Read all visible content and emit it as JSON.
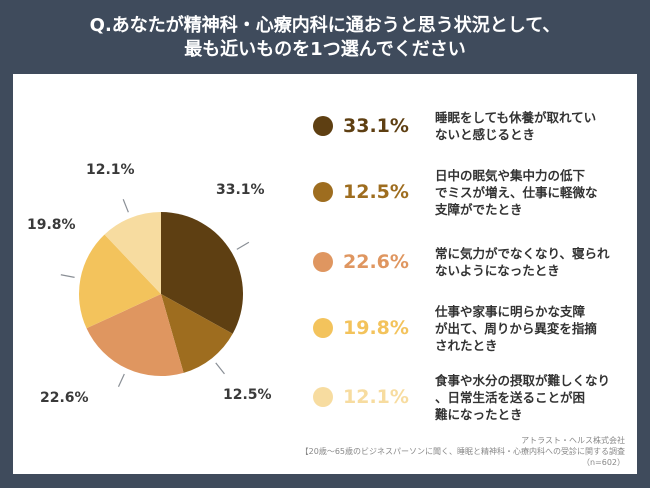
{
  "title": {
    "line1": "Q.あなたが精神科・心療内科に通おうと思う状況として、",
    "line2": "最も近いものを1つ選んでください"
  },
  "chart_data": {
    "type": "pie",
    "title": "Q.あなたが精神科・心療内科に通おうと思う状況として、最も近いものを1つ選んでください",
    "unit": "%",
    "slices": [
      {
        "label": "睡眠をしても休養が取れていないと感じるとき",
        "value": 33.1,
        "display": "33.1%",
        "color": "#5e3f12"
      },
      {
        "label": "日中の眠気や集中力の低下でミスが増え、仕事に軽微な支障がでたとき",
        "value": 12.5,
        "display": "12.5%",
        "color": "#9e6d1f"
      },
      {
        "label": "常に気力がでなくなり、寝られないようになったとき",
        "value": 22.6,
        "display": "22.6%",
        "color": "#df9660"
      },
      {
        "label": "仕事や家事に明らかな支障が出て、周りから異変を指摘されたとき",
        "value": 19.8,
        "display": "19.8%",
        "color": "#f3c35c"
      },
      {
        "label": "食事や水分の摂取が難しくなり、日常生活を送ることが困難になったとき",
        "value": 12.1,
        "display": "12.1%",
        "color": "#f7dca0"
      }
    ]
  },
  "legend": [
    {
      "pct": "33.1%",
      "line1": "睡眠をしても休養が取れてい",
      "line2": "ないと感じるとき",
      "line3": ""
    },
    {
      "pct": "12.5%",
      "line1": "日中の眠気や集中力の低下",
      "line2": "でミスが増え、仕事に軽微な",
      "line3": "支障がでたとき"
    },
    {
      "pct": "22.6%",
      "line1": "常に気力がでなくなり、寝られ",
      "line2": "ないようになったとき",
      "line3": ""
    },
    {
      "pct": "19.8%",
      "line1": "仕事や家事に明らかな支障",
      "line2": "が出て、周りから異変を指摘",
      "line3": "されたとき"
    },
    {
      "pct": "12.1%",
      "line1": "食事や水分の摂取が難しくなり",
      "line2": "、日常生活を送ることが困",
      "line3": "難になったとき"
    }
  ],
  "pie_labels": [
    "33.1%",
    "12.5%",
    "22.6%",
    "19.8%",
    "12.1%"
  ],
  "source": {
    "line1": "アトラスト・ヘルス株式会社",
    "line2": "【20歳～65歳のビジネスパーソンに聞く、睡眠と精神科・心療内科への受診に関する調査",
    "line3": "（n=602）"
  }
}
